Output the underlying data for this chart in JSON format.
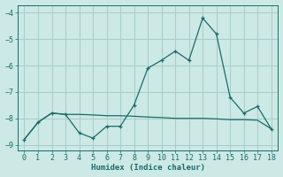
{
  "xlabel": "Humidex (Indice chaleur)",
  "background_color": "#cce9e5",
  "grid_color": "#aacfcc",
  "line_color": "#1a6b6b",
  "x_main": [
    0,
    1,
    2,
    3,
    4,
    5,
    6,
    7,
    8,
    9,
    10,
    11,
    12,
    13,
    14,
    15,
    16,
    17,
    18
  ],
  "y_main": [
    -8.8,
    -8.15,
    -7.8,
    -7.85,
    -8.55,
    -8.75,
    -8.3,
    -8.3,
    -7.5,
    -6.1,
    -5.8,
    -5.45,
    -5.8,
    -4.2,
    -4.8,
    -7.2,
    -7.8,
    -7.55,
    -8.4
  ],
  "x_ref": [
    0,
    1,
    2,
    3,
    4,
    5,
    6,
    7,
    8,
    9,
    10,
    11,
    12,
    13,
    14,
    15,
    16,
    17,
    18
  ],
  "y_ref": [
    -8.8,
    -8.15,
    -7.8,
    -7.85,
    -7.85,
    -7.87,
    -7.9,
    -7.9,
    -7.92,
    -7.95,
    -7.97,
    -8.0,
    -8.0,
    -8.0,
    -8.02,
    -8.05,
    -8.05,
    -8.07,
    -8.4
  ],
  "ylim": [
    -9.2,
    -3.7
  ],
  "xlim": [
    -0.5,
    18.5
  ],
  "yticks": [
    -9,
    -8,
    -7,
    -6,
    -5,
    -4
  ],
  "xticks": [
    0,
    1,
    2,
    3,
    4,
    5,
    6,
    7,
    8,
    9,
    10,
    11,
    12,
    13,
    14,
    15,
    16,
    17,
    18
  ]
}
